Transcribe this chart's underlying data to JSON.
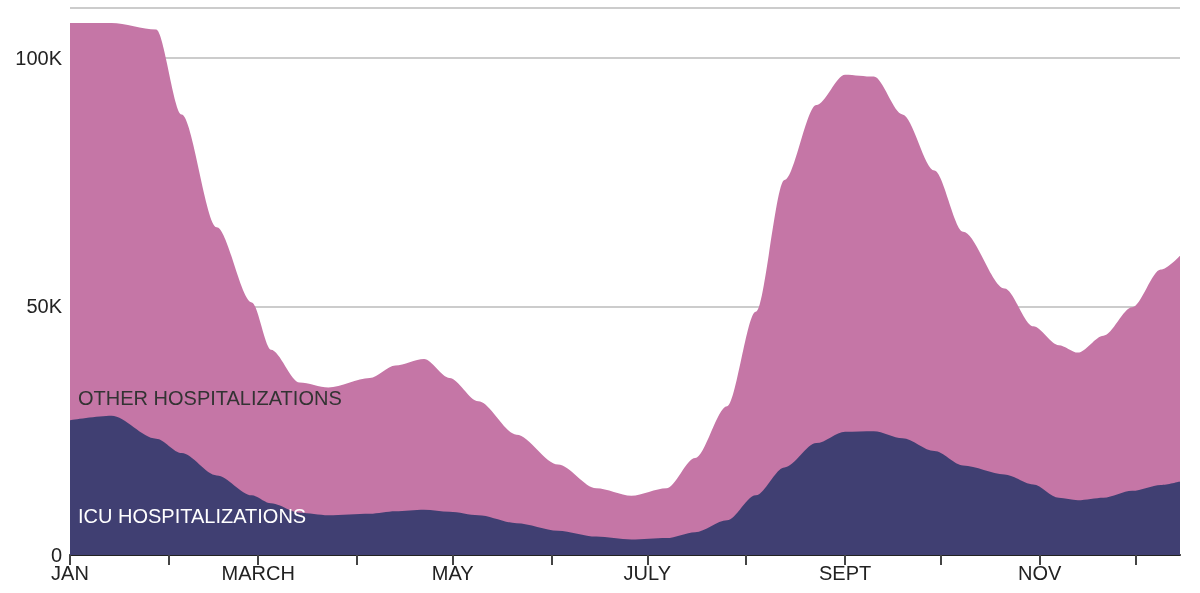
{
  "chart_data": {
    "type": "area",
    "stacked": true,
    "x": [
      "--01-01",
      "--01-14",
      "--01-28",
      "--02-05",
      "--02-16",
      "--02-27",
      "--03-05",
      "--03-14",
      "--03-23",
      "--04-05",
      "--04-13",
      "--04-22",
      "--04-30",
      "--05-09",
      "--05-21",
      "--06-03",
      "--06-15",
      "--06-26",
      "--07-07",
      "--07-16",
      "--07-26",
      "--08-04",
      "--08-13",
      "--08-23",
      "--09-01",
      "--09-10",
      "--09-19",
      "--09-29",
      "--10-08",
      "--10-21",
      "--10-30",
      "--11-07",
      "--11-13",
      "--11-21",
      "--11-30",
      "--12-09",
      "--12-15"
    ],
    "series": [
      {
        "name": "ICU HOSPITALIZATIONS",
        "color": "#403f72",
        "values": [
          27100,
          28000,
          23400,
          20500,
          16000,
          12000,
          10400,
          8500,
          8000,
          8300,
          8800,
          9100,
          8700,
          8000,
          6400,
          4900,
          3700,
          3100,
          3400,
          4600,
          7000,
          12000,
          17600,
          22500,
          24800,
          24900,
          23500,
          20900,
          18000,
          16200,
          14200,
          11500,
          11000,
          11500,
          12900,
          14100,
          14800
        ]
      },
      {
        "name": "OTHER HOSPITALIZATIONS",
        "color": "#c576a6",
        "values": [
          79900,
          79000,
          82300,
          68100,
          49900,
          38800,
          30900,
          26200,
          25700,
          27300,
          29300,
          30300,
          26900,
          22900,
          17800,
          13300,
          9700,
          8800,
          10000,
          14900,
          22900,
          36900,
          57800,
          68000,
          71800,
          71300,
          65100,
          56400,
          47000,
          37400,
          31800,
          30700,
          29700,
          32600,
          36900,
          43300,
          45400
        ]
      }
    ],
    "xlim": [
      "--01-01",
      "--12-15"
    ],
    "xticks": [
      {
        "value": "--01-01",
        "label": "JAN"
      },
      {
        "value": "--02-01",
        "label": null
      },
      {
        "value": "--03-01",
        "label": "MARCH"
      },
      {
        "value": "--04-01",
        "label": null
      },
      {
        "value": "--05-01",
        "label": "MAY"
      },
      {
        "value": "--06-01",
        "label": null
      },
      {
        "value": "--07-01",
        "label": "JULY"
      },
      {
        "value": "--08-01",
        "label": null
      },
      {
        "value": "--09-01",
        "label": "SEPT"
      },
      {
        "value": "--10-01",
        "label": null
      },
      {
        "value": "--11-01",
        "label": "NOV"
      },
      {
        "value": "--12-01",
        "label": null
      }
    ],
    "ylim": [
      0,
      110000
    ],
    "yticks": [
      0,
      {
        "value": 50000,
        "label": "50K"
      },
      {
        "value": 100000,
        "label": "100K"
      }
    ],
    "grid": "y",
    "legend": false
  }
}
